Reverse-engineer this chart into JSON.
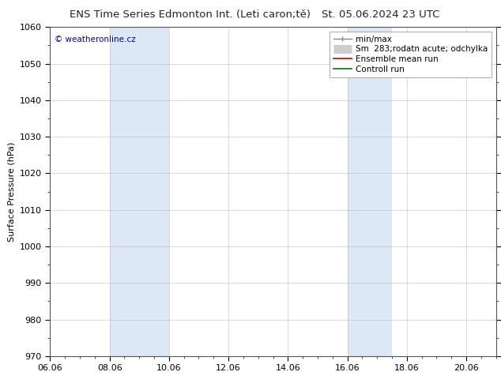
{
  "title1": "ENS Time Series Edmonton Int. (Leti caron;tě)",
  "title2": "St. 05.06.2024 23 UTC",
  "ylabel": "Surface Pressure (hPa)",
  "ylim": [
    970,
    1060
  ],
  "yticks": [
    970,
    980,
    990,
    1000,
    1010,
    1020,
    1030,
    1040,
    1050,
    1060
  ],
  "xtick_labels": [
    "06.06",
    "08.06",
    "10.06",
    "12.06",
    "14.06",
    "16.06",
    "18.06",
    "20.06"
  ],
  "xtick_positions": [
    0,
    2,
    4,
    6,
    8,
    10,
    12,
    14
  ],
  "xlim": [
    0,
    15
  ],
  "shade_bands": [
    {
      "xmin": 2.0,
      "xmax": 4.0
    },
    {
      "xmin": 10.0,
      "xmax": 11.5
    }
  ],
  "shade_color": "#dce8f5",
  "watermark": "© weatheronline.cz",
  "bg_color": "#ffffff",
  "plot_bg_color": "#ffffff",
  "title_fontsize": 9.5,
  "axis_fontsize": 8,
  "tick_fontsize": 8,
  "legend_fontsize": 7.5
}
